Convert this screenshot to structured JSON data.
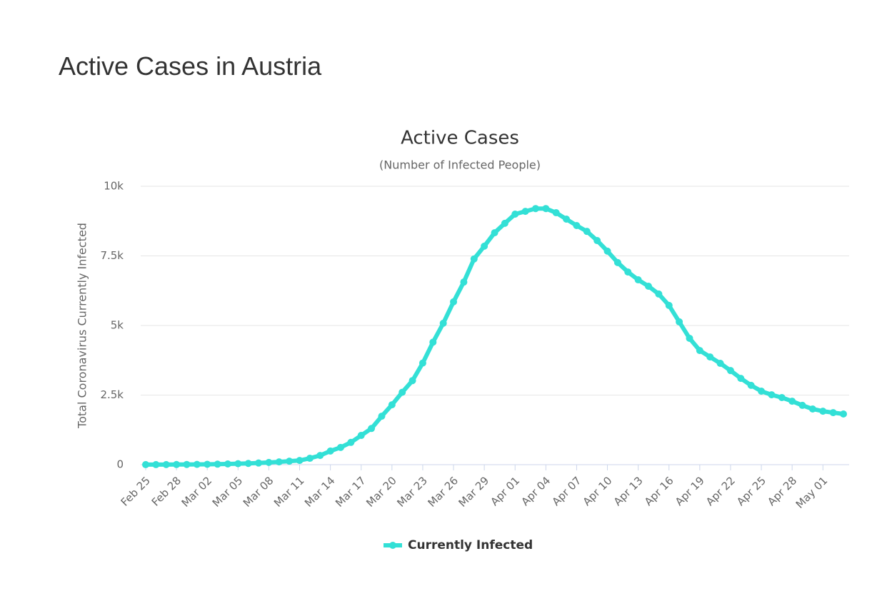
{
  "header": {
    "title": "Active Cases in Austria"
  },
  "chart_data": {
    "type": "line",
    "title": "Active Cases",
    "subtitle": "(Number of Infected People)",
    "y_label": "Total Coronavirus Currently Infected",
    "categories": [
      "Feb 25",
      null,
      null,
      "Feb 28",
      null,
      null,
      "Mar 02",
      null,
      null,
      "Mar 05",
      null,
      null,
      "Mar 08",
      null,
      null,
      "Mar 11",
      null,
      null,
      "Mar 14",
      null,
      null,
      "Mar 17",
      null,
      null,
      "Mar 20",
      null,
      null,
      "Mar 23",
      null,
      null,
      "Mar 26",
      null,
      null,
      "Mar 29",
      null,
      null,
      "Apr 01",
      null,
      null,
      "Apr 04",
      null,
      null,
      "Apr 07",
      null,
      null,
      "Apr 10",
      null,
      null,
      "Apr 13",
      null,
      null,
      "Apr 16",
      null,
      null,
      "Apr 19",
      null,
      null,
      "Apr 22",
      null,
      null,
      "Apr 25",
      null,
      null,
      "Apr 28",
      null,
      null,
      "May 01",
      null,
      null
    ],
    "series": [
      {
        "name": "Currently Infected",
        "color": "#33e0d6",
        "values": [
          2,
          2,
          3,
          5,
          8,
          10,
          14,
          18,
          25,
          35,
          45,
          60,
          80,
          100,
          125,
          150,
          230,
          330,
          490,
          620,
          800,
          1050,
          1300,
          1740,
          2150,
          2600,
          3020,
          3650,
          4400,
          5080,
          5850,
          6560,
          7390,
          7850,
          8330,
          8670,
          9000,
          9100,
          9200,
          9200,
          9050,
          8820,
          8590,
          8380,
          8050,
          7670,
          7260,
          6920,
          6640,
          6410,
          6130,
          5720,
          5130,
          4540,
          4100,
          3870,
          3640,
          3380,
          3100,
          2850,
          2640,
          2510,
          2410,
          2280,
          2130,
          2000,
          1920,
          1870,
          1820
        ]
      }
    ],
    "ylim": [
      0,
      10000
    ],
    "yticks": [
      0,
      {
        "value": 2500,
        "label": "2.5k"
      },
      {
        "value": 5000,
        "label": "5k"
      },
      {
        "value": 7500,
        "label": "7.5k"
      },
      {
        "value": 10000,
        "label": "10k"
      }
    ],
    "grid": true
  }
}
